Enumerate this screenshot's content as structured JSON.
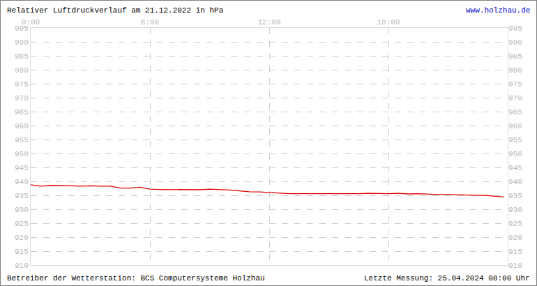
{
  "chart_data": {
    "type": "line",
    "title": "Relativer Luftdruckverlauf am 21.12.2022 in hPa",
    "source": "www.holzhau.de",
    "footer_left": "Betreiber der Wetterstation: BCS Computersysteme Holzhau",
    "footer_right": "Letzte Messung: 25.04.2024 08:00 Uhr",
    "x": [
      0,
      0.5,
      1,
      1.5,
      2,
      2.5,
      3,
      3.5,
      4,
      4.5,
      5,
      5.5,
      6,
      6.5,
      7,
      7.5,
      8,
      8.5,
      9,
      9.5,
      10,
      10.5,
      11,
      11.5,
      12,
      12.5,
      13,
      13.5,
      14,
      14.5,
      15,
      15.5,
      16,
      16.5,
      17,
      17.5,
      18,
      18.5,
      19,
      19.5,
      20,
      20.5,
      21,
      21.5,
      22,
      22.5,
      23,
      23.5,
      23.8
    ],
    "values": [
      938.8,
      938.3,
      938.5,
      938.5,
      938.4,
      938.3,
      938.4,
      938.3,
      938.3,
      937.6,
      937.6,
      937.9,
      937.2,
      937.1,
      937.1,
      937.0,
      937.0,
      937.0,
      937.2,
      937.1,
      936.9,
      936.6,
      936.3,
      936.2,
      936.0,
      935.8,
      935.6,
      935.6,
      935.6,
      935.6,
      935.5,
      935.6,
      935.6,
      935.6,
      935.7,
      935.6,
      935.6,
      935.7,
      935.5,
      935.6,
      935.4,
      935.3,
      935.3,
      935.2,
      935.0,
      935.0,
      934.9,
      934.6,
      934.4
    ],
    "color": "#e00000",
    "xlim": [
      0,
      24
    ],
    "xticks": [
      {
        "value": 0,
        "label": "0:00"
      },
      {
        "value": 6,
        "label": "6:00"
      },
      {
        "value": 12,
        "label": "12:00"
      },
      {
        "value": 18,
        "label": "18:00"
      }
    ],
    "ylim": [
      910,
      995
    ],
    "yticks": [
      910,
      915,
      920,
      925,
      930,
      935,
      940,
      945,
      950,
      955,
      960,
      965,
      970,
      975,
      980,
      985,
      990,
      995
    ],
    "grid": true
  }
}
